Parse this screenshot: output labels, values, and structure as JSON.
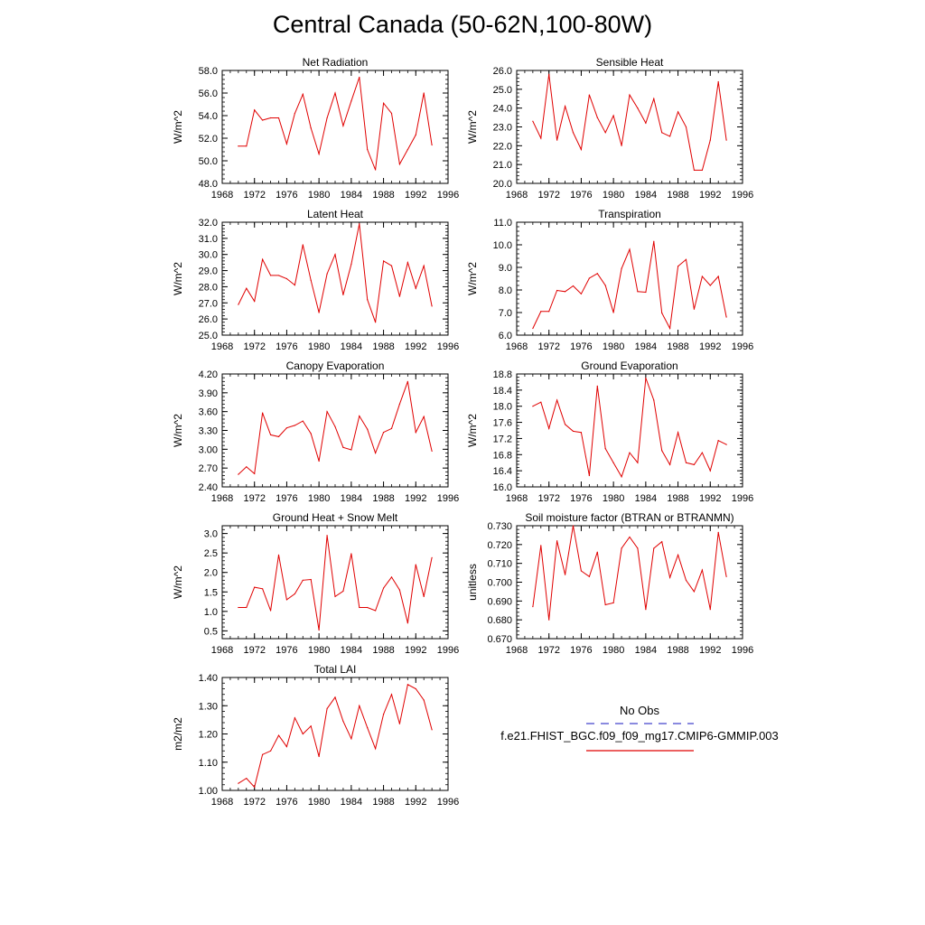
{
  "title": "Central Canada (50-62N,100-80W)",
  "legend": {
    "obs_label": "No Obs",
    "case_label": "f.e21.FHIST_BGC.f09_f09_mg17.CMIP6-GMMIP.003",
    "obs_color": "#4444cc",
    "case_color": "#e00000"
  },
  "chart_data": [
    {
      "type": "line",
      "title": "Net Radiation",
      "ylabel": "W/m^2",
      "xlim": [
        1968,
        1996
      ],
      "xticks": [
        "1968",
        "1972",
        "1976",
        "1980",
        "1984",
        "1988",
        "1992",
        "1996"
      ],
      "ylim": [
        48.0,
        58.0
      ],
      "yticks": [
        "48.0",
        "50.0",
        "52.0",
        "54.0",
        "56.0",
        "58.0"
      ],
      "x": [
        1970,
        1971,
        1972,
        1973,
        1974,
        1975,
        1976,
        1977,
        1978,
        1979,
        1980,
        1981,
        1982,
        1983,
        1984,
        1985,
        1986,
        1987,
        1988,
        1989,
        1990,
        1991,
        1992,
        1993,
        1994
      ],
      "series": [
        {
          "values": [
            51.3,
            51.3,
            54.5,
            53.6,
            53.8,
            53.8,
            51.5,
            54.2,
            55.9,
            52.9,
            50.6,
            53.8,
            56.0,
            53.1,
            55.3,
            57.4,
            51.0,
            49.2,
            55.1,
            54.2,
            49.7,
            51.0,
            52.3,
            56.0,
            51.4
          ]
        }
      ]
    },
    {
      "type": "line",
      "title": "Sensible Heat",
      "ylabel": "W/m^2",
      "xlim": [
        1968,
        1996
      ],
      "xticks": [
        "1968",
        "1972",
        "1976",
        "1980",
        "1984",
        "1988",
        "1992",
        "1996"
      ],
      "ylim": [
        20.0,
        26.0
      ],
      "yticks": [
        "20.0",
        "21.0",
        "22.0",
        "23.0",
        "24.0",
        "25.0",
        "26.0"
      ],
      "x": [
        1970,
        1971,
        1972,
        1973,
        1974,
        1975,
        1976,
        1977,
        1978,
        1979,
        1980,
        1981,
        1982,
        1983,
        1984,
        1985,
        1986,
        1987,
        1988,
        1989,
        1990,
        1991,
        1992,
        1993,
        1994
      ],
      "series": [
        {
          "values": [
            23.3,
            22.4,
            25.8,
            22.3,
            24.1,
            22.7,
            21.8,
            24.7,
            23.5,
            22.7,
            23.6,
            22.0,
            24.7,
            24.0,
            23.2,
            24.5,
            22.7,
            22.5,
            23.8,
            23.0,
            20.7,
            20.7,
            22.3,
            25.4,
            22.3
          ]
        }
      ]
    },
    {
      "type": "line",
      "title": "Latent Heat",
      "ylabel": "W/m^2",
      "xlim": [
        1968,
        1996
      ],
      "xticks": [
        "1968",
        "1972",
        "1976",
        "1980",
        "1984",
        "1988",
        "1992",
        "1996"
      ],
      "ylim": [
        25.0,
        32.0
      ],
      "yticks": [
        "25.0",
        "26.0",
        "27.0",
        "28.0",
        "29.0",
        "30.0",
        "31.0",
        "32.0"
      ],
      "x": [
        1970,
        1971,
        1972,
        1973,
        1974,
        1975,
        1976,
        1977,
        1978,
        1979,
        1980,
        1981,
        1982,
        1983,
        1984,
        1985,
        1986,
        1987,
        1988,
        1989,
        1990,
        1991,
        1992,
        1993,
        1994
      ],
      "series": [
        {
          "values": [
            26.9,
            27.9,
            27.1,
            29.7,
            28.7,
            28.7,
            28.5,
            28.1,
            30.6,
            28.4,
            26.4,
            28.8,
            30.0,
            27.5,
            29.4,
            31.9,
            27.2,
            25.8,
            29.6,
            29.3,
            27.4,
            29.5,
            27.9,
            29.3,
            26.8
          ]
        }
      ]
    },
    {
      "type": "line",
      "title": "Transpiration",
      "ylabel": "W/m^2",
      "xlim": [
        1968,
        1996
      ],
      "xticks": [
        "1968",
        "1972",
        "1976",
        "1980",
        "1984",
        "1988",
        "1992",
        "1996"
      ],
      "ylim": [
        6.0,
        11.0
      ],
      "yticks": [
        "6.0",
        "7.0",
        "8.0",
        "9.0",
        "10.0",
        "11.0"
      ],
      "x": [
        1970,
        1971,
        1972,
        1973,
        1974,
        1975,
        1976,
        1977,
        1978,
        1979,
        1980,
        1981,
        1982,
        1983,
        1984,
        1985,
        1986,
        1987,
        1988,
        1989,
        1990,
        1991,
        1992,
        1993,
        1994
      ],
      "series": [
        {
          "values": [
            6.3,
            7.05,
            7.05,
            7.98,
            7.93,
            8.18,
            7.83,
            8.52,
            8.73,
            8.2,
            7.0,
            8.95,
            9.8,
            7.93,
            7.9,
            10.15,
            6.98,
            6.3,
            9.05,
            9.35,
            7.15,
            8.6,
            8.2,
            8.6,
            6.8
          ]
        }
      ]
    },
    {
      "type": "line",
      "title": "Canopy Evaporation",
      "ylabel": "W/m^2",
      "xlim": [
        1968,
        1996
      ],
      "xticks": [
        "1968",
        "1972",
        "1976",
        "1980",
        "1984",
        "1988",
        "1992",
        "1996"
      ],
      "ylim": [
        2.4,
        4.2
      ],
      "yticks": [
        "2.40",
        "2.70",
        "3.00",
        "3.30",
        "3.60",
        "3.90",
        "4.20"
      ],
      "x": [
        1970,
        1971,
        1972,
        1973,
        1974,
        1975,
        1976,
        1977,
        1978,
        1979,
        1980,
        1981,
        1982,
        1983,
        1984,
        1985,
        1986,
        1987,
        1988,
        1989,
        1990,
        1991,
        1992,
        1993,
        1994
      ],
      "series": [
        {
          "values": [
            2.6,
            2.72,
            2.61,
            3.58,
            3.23,
            3.2,
            3.34,
            3.38,
            3.45,
            3.25,
            2.81,
            3.6,
            3.36,
            3.03,
            2.99,
            3.53,
            3.32,
            2.94,
            3.27,
            3.33,
            3.72,
            4.08,
            3.27,
            3.52,
            2.97
          ]
        }
      ]
    },
    {
      "type": "line",
      "title": "Ground Evaporation",
      "ylabel": "W/m^2",
      "xlim": [
        1968,
        1996
      ],
      "xticks": [
        "1968",
        "1972",
        "1976",
        "1980",
        "1984",
        "1988",
        "1992",
        "1996"
      ],
      "ylim": [
        16.0,
        18.8
      ],
      "yticks": [
        "16.0",
        "16.4",
        "16.8",
        "17.2",
        "17.6",
        "18.0",
        "18.4",
        "18.8"
      ],
      "x": [
        1970,
        1971,
        1972,
        1973,
        1974,
        1975,
        1976,
        1977,
        1978,
        1979,
        1980,
        1981,
        1982,
        1983,
        1984,
        1985,
        1986,
        1987,
        1988,
        1989,
        1990,
        1991,
        1992,
        1993,
        1994
      ],
      "series": [
        {
          "values": [
            18.0,
            18.1,
            17.45,
            18.15,
            17.55,
            17.38,
            17.35,
            16.28,
            18.5,
            16.95,
            16.6,
            16.25,
            16.85,
            16.6,
            18.7,
            18.15,
            16.9,
            16.55,
            17.35,
            16.6,
            16.55,
            16.85,
            16.4,
            17.15,
            17.05
          ]
        }
      ]
    },
    {
      "type": "line",
      "title": "Ground Heat + Snow Melt",
      "ylabel": "W/m^2",
      "xlim": [
        1968,
        1996
      ],
      "xticks": [
        "1968",
        "1972",
        "1976",
        "1980",
        "1984",
        "1988",
        "1992",
        "1996"
      ],
      "ylim": [
        0.3,
        3.2
      ],
      "yticks": [
        "0.5",
        "1.0",
        "1.5",
        "2.0",
        "2.5",
        "3.0"
      ],
      "x": [
        1970,
        1971,
        1972,
        1973,
        1974,
        1975,
        1976,
        1977,
        1978,
        1979,
        1980,
        1981,
        1982,
        1983,
        1984,
        1985,
        1986,
        1987,
        1988,
        1989,
        1990,
        1991,
        1992,
        1993,
        1994
      ],
      "series": [
        {
          "values": [
            1.1,
            1.1,
            1.62,
            1.58,
            1.02,
            2.45,
            1.3,
            1.45,
            1.8,
            1.82,
            0.52,
            2.95,
            1.38,
            1.52,
            2.48,
            1.1,
            1.1,
            1.02,
            1.6,
            1.88,
            1.55,
            0.7,
            2.2,
            1.38,
            2.38
          ]
        }
      ]
    },
    {
      "type": "line",
      "title": "Soil moisture factor (BTRAN or BTRANMN)",
      "ylabel": "unitless",
      "xlim": [
        1968,
        1996
      ],
      "xticks": [
        "1968",
        "1972",
        "1976",
        "1980",
        "1984",
        "1988",
        "1992",
        "1996"
      ],
      "ylim": [
        0.67,
        0.73
      ],
      "yticks": [
        "0.670",
        "0.680",
        "0.690",
        "0.700",
        "0.710",
        "0.720",
        "0.730"
      ],
      "x": [
        1970,
        1971,
        1972,
        1973,
        1974,
        1975,
        1976,
        1977,
        1978,
        1979,
        1980,
        1981,
        1982,
        1983,
        1984,
        1985,
        1986,
        1987,
        1988,
        1989,
        1990,
        1991,
        1992,
        1993,
        1994
      ],
      "series": [
        {
          "values": [
            0.687,
            0.7195,
            0.68,
            0.722,
            0.704,
            0.73,
            0.706,
            0.703,
            0.716,
            0.688,
            0.689,
            0.718,
            0.724,
            0.718,
            0.6855,
            0.718,
            0.7215,
            0.7025,
            0.7145,
            0.701,
            0.695,
            0.7065,
            0.6855,
            0.7265,
            0.703
          ]
        }
      ]
    },
    {
      "type": "line",
      "title": "Total LAI",
      "ylabel": "m2/m2",
      "xlim": [
        1968,
        1996
      ],
      "xticks": [
        "1968",
        "1972",
        "1976",
        "1980",
        "1984",
        "1988",
        "1992",
        "1996"
      ],
      "ylim": [
        1.0,
        1.4
      ],
      "yticks": [
        "1.00",
        "1.10",
        "1.20",
        "1.30",
        "1.40"
      ],
      "x": [
        1970,
        1971,
        1972,
        1973,
        1974,
        1975,
        1976,
        1977,
        1978,
        1979,
        1980,
        1981,
        1982,
        1983,
        1984,
        1985,
        1986,
        1987,
        1988,
        1989,
        1990,
        1991,
        1992,
        1993,
        1994
      ],
      "series": [
        {
          "values": [
            1.025,
            1.043,
            1.012,
            1.127,
            1.14,
            1.195,
            1.155,
            1.257,
            1.2,
            1.228,
            1.12,
            1.29,
            1.33,
            1.245,
            1.183,
            1.3,
            1.222,
            1.148,
            1.27,
            1.34,
            1.236,
            1.375,
            1.36,
            1.32,
            1.215
          ]
        }
      ]
    }
  ]
}
